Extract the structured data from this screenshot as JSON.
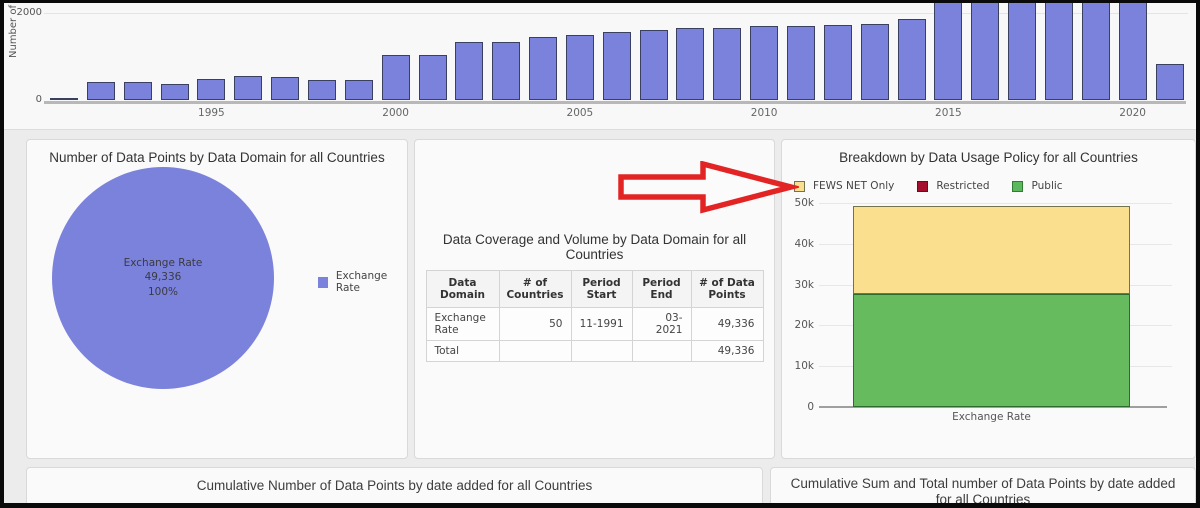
{
  "chart_data": [
    {
      "id": "data-points-added-by-year",
      "type": "bar",
      "title": "",
      "ylabel": "Number of Data Points",
      "xlabel": "",
      "categories": [
        1991,
        1992,
        1993,
        1994,
        1995,
        1996,
        1997,
        1998,
        1999,
        2000,
        2001,
        2002,
        2003,
        2004,
        2005,
        2006,
        2007,
        2008,
        2009,
        2010,
        2011,
        2012,
        2013,
        2014,
        2015,
        2016,
        2017,
        2018,
        2019,
        2020,
        2021
      ],
      "values": [
        30,
        375,
        375,
        340,
        440,
        500,
        480,
        415,
        415,
        935,
        935,
        1210,
        1210,
        1310,
        1350,
        1415,
        1460,
        1500,
        1500,
        1540,
        1545,
        1560,
        1580,
        1690,
        2600,
        2600,
        2600,
        2600,
        2600,
        2600,
        750
      ],
      "x_ticks": [
        "1995",
        "2000",
        "2005",
        "2010",
        "2015",
        "2020"
      ],
      "y_ticks": [
        "0",
        "2000"
      ],
      "bar_color": "#7b82db",
      "bar_border_color": "#3a4160",
      "grid": "faint horizontal at 2000; bars above ~2230 are clipped by panel top"
    },
    {
      "id": "data-points-by-domain-pie",
      "type": "pie",
      "title": "Number of Data Points by Data Domain for all Countries",
      "slices": [
        {
          "label": "Exchange Rate",
          "value": 49336,
          "percent": "100%",
          "color": "#7b82db"
        }
      ],
      "center_label_lines": [
        "Exchange Rate",
        "49,336",
        "100%"
      ],
      "legend_position": "right"
    },
    {
      "id": "coverage-volume-table",
      "type": "table",
      "title": "Data Coverage and Volume by Data Domain for all Countries",
      "columns": [
        "Data Domain",
        "# of Countries",
        "Period Start",
        "Period End",
        "# of Data Points"
      ],
      "rows": [
        [
          "Exchange Rate",
          "50",
          "11-1991",
          "03-2021",
          "49,336"
        ],
        [
          "Total",
          "",
          "",
          "",
          "49,336"
        ]
      ]
    },
    {
      "id": "usage-policy-stacked-bar",
      "type": "bar",
      "stacked": true,
      "title": "Breakdown by Data Usage Policy for all Countries",
      "categories": [
        "Exchange Rate"
      ],
      "series": [
        {
          "name": "Public",
          "values": [
            27700
          ],
          "color": "#66bb5e",
          "border": "#2e6b2e"
        },
        {
          "name": "FEWS NET Only",
          "values": [
            21636
          ],
          "color": "#f9df8e",
          "border": "#73734d"
        },
        {
          "name": "Restricted",
          "values": [
            0
          ],
          "color": "#a50e2d",
          "border": "#6d0a1e"
        }
      ],
      "legend": [
        {
          "label": "FEWS NET Only",
          "color": "#f9df8e",
          "border": "#73734d"
        },
        {
          "label": "Restricted",
          "color": "#a50e2d",
          "border": "#6d0a1e"
        },
        {
          "label": "Public",
          "color": "#5cb85c",
          "border": "#337a33"
        }
      ],
      "y_ticks": [
        "0",
        "10k",
        "20k",
        "30k",
        "40k",
        "50k"
      ],
      "ylim": [
        0,
        50000
      ],
      "xlabel_tick": "Exchange Rate",
      "legend_position": "top",
      "grid": "on"
    }
  ],
  "bottom_panels": {
    "left_title": "Cumulative Number of Data Points by date added for all Countries",
    "right_title": "Cumulative Sum and Total number of Data Points by date added for all Countries"
  },
  "annotation": {
    "red_arrow_color": "#e32424",
    "red_arrow_points_at": "FEWS NET Only legend item"
  }
}
